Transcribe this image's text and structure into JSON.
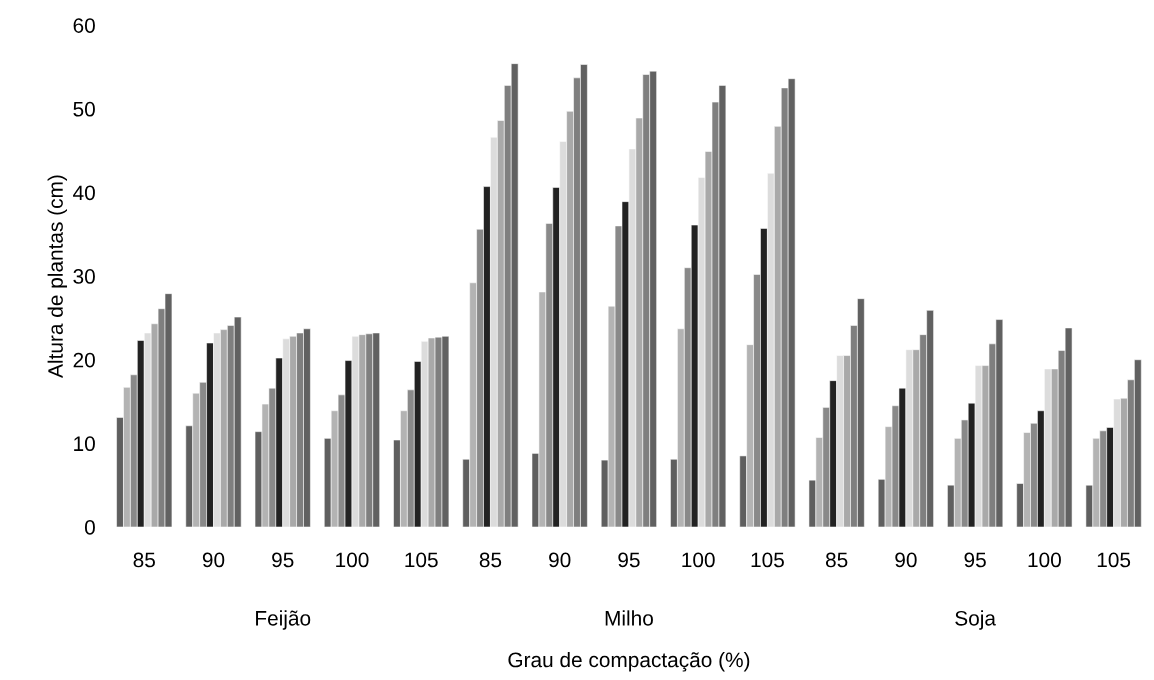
{
  "chart_data": {
    "type": "bar",
    "xlabel": "Grau de compactação (%)",
    "ylabel": "Altura de plantas (cm)",
    "categories": [
      "85",
      "90",
      "95",
      "100",
      "105",
      "85",
      "90",
      "95",
      "100",
      "105",
      "85",
      "90",
      "95",
      "100",
      "105"
    ],
    "annotations": [
      "Feijão",
      "Milho",
      "Soja"
    ],
    "ylim": [
      0,
      60
    ],
    "yticks": [
      0,
      10,
      20,
      30,
      40,
      50,
      60
    ],
    "grid": false,
    "series": [
      {
        "color": "#5f5f5f",
        "values": [
          13.1,
          12.1,
          11.4,
          10.6,
          10.4,
          8.1,
          8.8,
          8.0,
          8.1,
          8.5,
          5.6,
          5.7,
          5.0,
          5.2,
          5.0
        ]
      },
      {
        "color": "#b3b3b3",
        "values": [
          16.7,
          16.0,
          14.7,
          13.9,
          13.9,
          29.2,
          28.1,
          26.4,
          23.7,
          21.8,
          10.7,
          12.0,
          10.6,
          11.3,
          10.6
        ]
      },
      {
        "color": "#898989",
        "values": [
          18.2,
          17.3,
          16.6,
          15.8,
          16.4,
          35.6,
          36.3,
          36.0,
          31.0,
          30.2,
          14.3,
          14.5,
          12.8,
          12.4,
          11.5
        ]
      },
      {
        "color": "#222222",
        "values": [
          22.3,
          22.0,
          20.2,
          19.9,
          19.8,
          40.7,
          40.6,
          38.9,
          36.1,
          35.7,
          17.5,
          16.6,
          14.8,
          13.9,
          11.9
        ]
      },
      {
        "color": "#dcdcdc",
        "values": [
          23.2,
          23.2,
          22.5,
          22.8,
          22.2,
          46.6,
          46.1,
          45.2,
          41.8,
          42.3,
          20.5,
          21.2,
          19.3,
          18.9,
          15.3
        ]
      },
      {
        "color": "#a9a9a9",
        "values": [
          24.3,
          23.6,
          22.8,
          23.0,
          22.6,
          48.6,
          49.7,
          48.9,
          44.9,
          47.9,
          20.5,
          21.2,
          19.3,
          18.9,
          15.4
        ]
      },
      {
        "color": "#7f7f7f",
        "values": [
          26.1,
          24.1,
          23.2,
          23.1,
          22.7,
          52.8,
          53.7,
          54.1,
          50.8,
          52.5,
          24.1,
          23.0,
          21.9,
          21.1,
          17.6
        ]
      },
      {
        "color": "#616161",
        "values": [
          27.9,
          25.1,
          23.7,
          23.2,
          22.8,
          55.4,
          55.3,
          54.5,
          52.8,
          53.6,
          27.3,
          25.9,
          24.8,
          23.8,
          20.0
        ]
      }
    ]
  }
}
